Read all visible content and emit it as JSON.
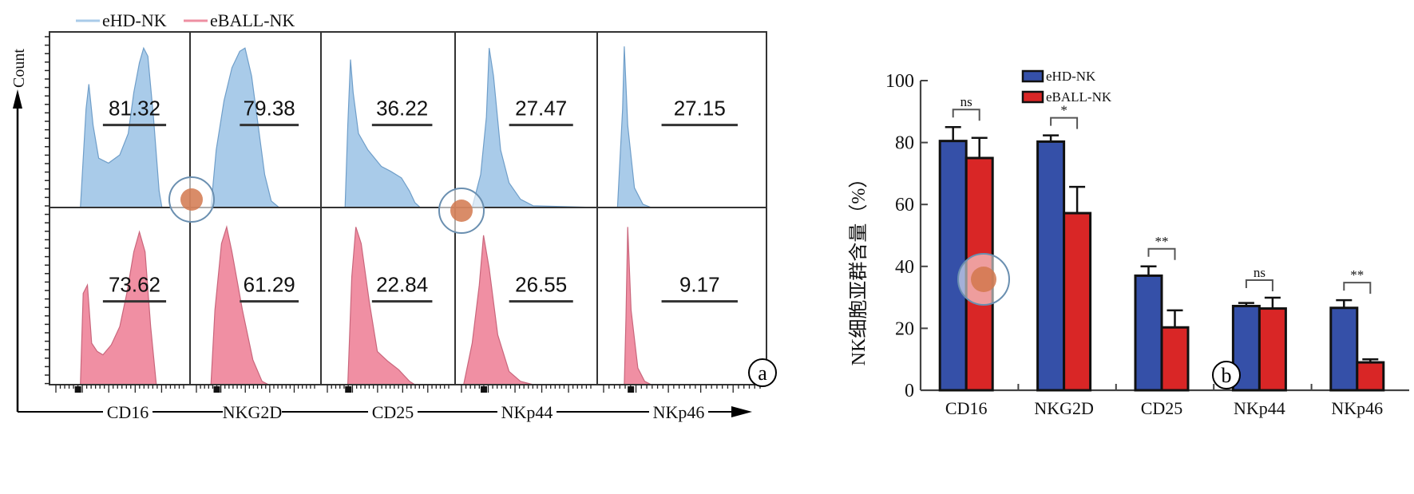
{
  "chart_data": [
    {
      "type": "histogram-grid",
      "panel_label": "a",
      "ylabel": "Count",
      "legend": [
        {
          "name": "eHD-NK",
          "color": "#a9cbe9"
        },
        {
          "name": "eBALL-NK",
          "color": "#ee8fa2"
        }
      ],
      "markers": [
        "CD16",
        "NKG2D",
        "CD25",
        "NKp44",
        "NKp46"
      ],
      "rows": [
        {
          "series": "eHD-NK",
          "fill": "#a9cbe9",
          "stroke": "#6f9ec9",
          "gate_percent": [
            81.32,
            79.38,
            36.22,
            27.47,
            27.15
          ]
        },
        {
          "series": "eBALL-NK",
          "fill": "#f08fa3",
          "stroke": "#c9667c",
          "gate_percent": [
            73.62,
            61.29,
            22.84,
            26.55,
            9.17
          ]
        }
      ]
    },
    {
      "type": "bar",
      "panel_label": "b",
      "title": "",
      "xlabel": "",
      "ylabel": "NK细胞亚群含量（%）",
      "ylim": [
        0,
        100
      ],
      "yticks": [
        0,
        20,
        40,
        60,
        80,
        100
      ],
      "categories": [
        "CD16",
        "NKG2D",
        "CD25",
        "NKp44",
        "NKp46"
      ],
      "series": [
        {
          "name": "eHD-NK",
          "color": "#3550a8",
          "values": [
            80.5,
            80.3,
            37.0,
            27.2,
            26.6
          ],
          "errors": [
            4.5,
            2.0,
            3.0,
            1.0,
            2.5
          ]
        },
        {
          "name": "eBALL-NK",
          "color": "#d92626",
          "values": [
            75.0,
            57.2,
            20.3,
            26.4,
            9.0
          ],
          "errors": [
            6.5,
            8.5,
            5.5,
            3.5,
            1.0
          ]
        }
      ],
      "significance": [
        "ns",
        "*",
        "**",
        "ns",
        "**"
      ],
      "legend_position": "top-right",
      "grid": false
    }
  ]
}
